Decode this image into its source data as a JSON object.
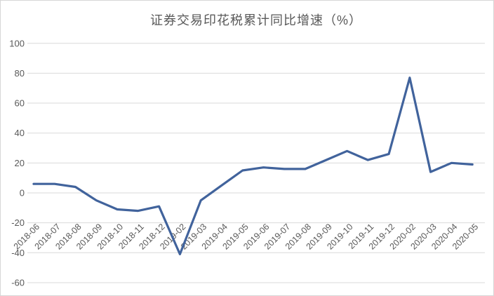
{
  "chart_data": {
    "type": "line",
    "title": "证券交易印花税累计同比增速（%）",
    "categories": [
      "2018-06",
      "2018-07",
      "2018-08",
      "2018-09",
      "2018-10",
      "2018-11",
      "2018-12",
      "2019-02",
      "2019-03",
      "2019-04",
      "2019-05",
      "2019-06",
      "2019-07",
      "2019-08",
      "2019-09",
      "2019-10",
      "2019-11",
      "2019-12",
      "2020-02",
      "2020-03",
      "2020-04",
      "2020-05"
    ],
    "values": [
      6,
      6,
      4,
      -5,
      -11,
      -12,
      -9,
      -41,
      -5,
      5,
      15,
      17,
      16,
      16,
      22,
      28,
      22,
      26,
      77,
      14,
      20,
      19
    ],
    "xlabel": "",
    "ylabel": "",
    "ylim": [
      -60,
      100
    ],
    "yticks": [
      100,
      80,
      60,
      40,
      20,
      0,
      -20,
      -40,
      -60
    ],
    "grid": true,
    "legend_position": "none",
    "colors": {
      "line": "#41639c",
      "gridline": "#d9d9d9",
      "tick_label": "#595959",
      "title": "#595959",
      "background": "#ffffff",
      "border": "#d6d6d6"
    }
  }
}
